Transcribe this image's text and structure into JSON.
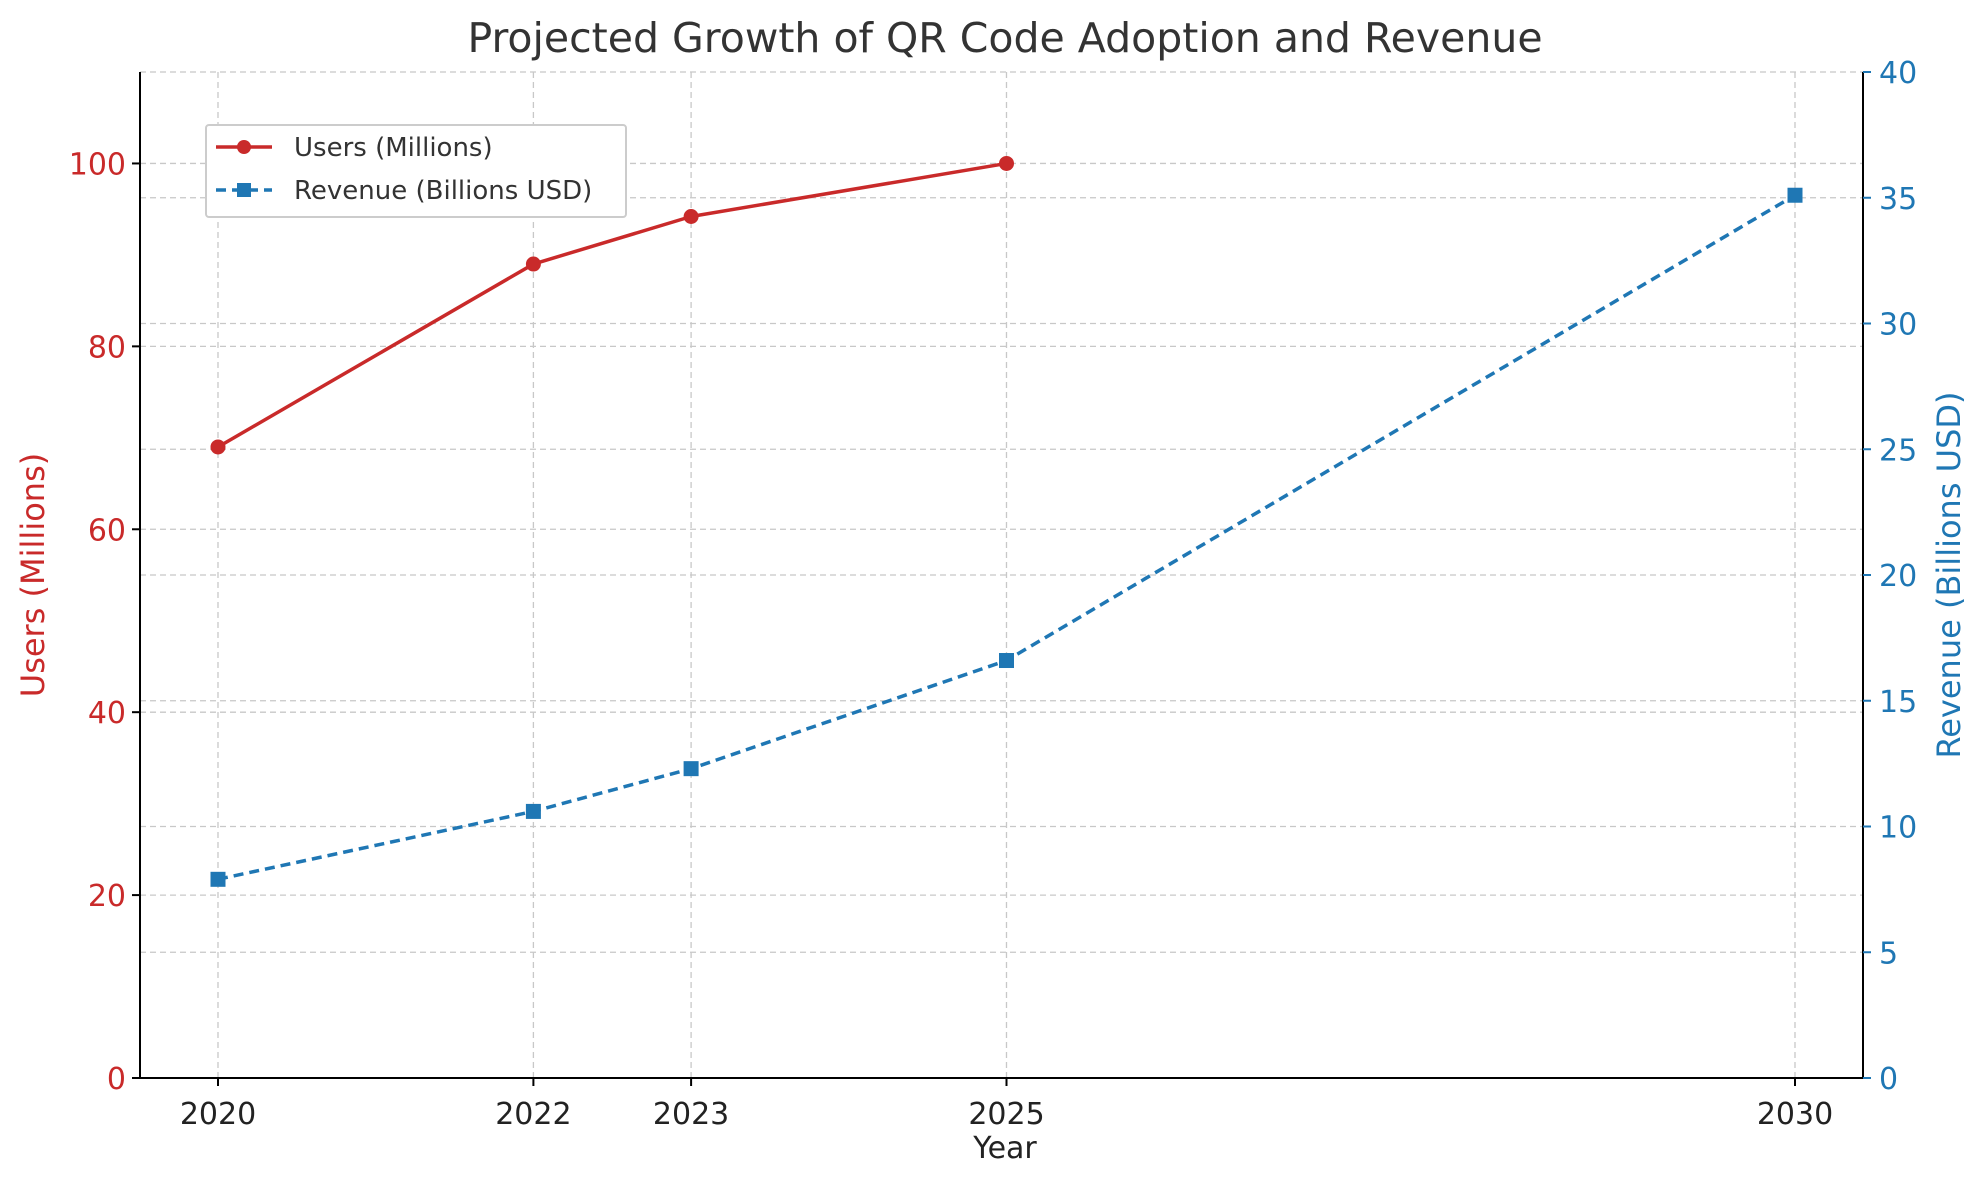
{
  "chart_data": {
    "type": "line",
    "title": "Projected Growth of QR Code Adoption and Revenue",
    "xlabel": "Year",
    "ylabel_left": "Users (Millions)",
    "ylabel_right": "Revenue (Billions USD)",
    "x": [
      2020,
      2022,
      2023,
      2025,
      2030
    ],
    "xlim": [
      2019.5,
      2030.5
    ],
    "ylim_left": [
      0,
      110
    ],
    "ylim_right": [
      0,
      40
    ],
    "yticks_left": [
      0,
      20,
      40,
      60,
      80,
      100
    ],
    "yticks_right": [
      0,
      5,
      10,
      15,
      20,
      25,
      30,
      35,
      40
    ],
    "grid": true,
    "legend_position": "upper-left",
    "series": [
      {
        "name": "Users (Millions)",
        "axis": "left",
        "color": "#c92a2a",
        "line_style": "solid",
        "marker": "circle",
        "points": [
          [
            2020,
            69
          ],
          [
            2022,
            89
          ],
          [
            2023,
            94.2
          ],
          [
            2025,
            100
          ]
        ]
      },
      {
        "name": "Revenue (Billions USD)",
        "axis": "right",
        "color": "#1f77b4",
        "line_style": "dashed",
        "marker": "square",
        "points": [
          [
            2020,
            7.9
          ],
          [
            2022,
            10.6
          ],
          [
            2023,
            12.3
          ],
          [
            2025,
            16.6
          ],
          [
            2030,
            35.1
          ]
        ]
      }
    ]
  }
}
